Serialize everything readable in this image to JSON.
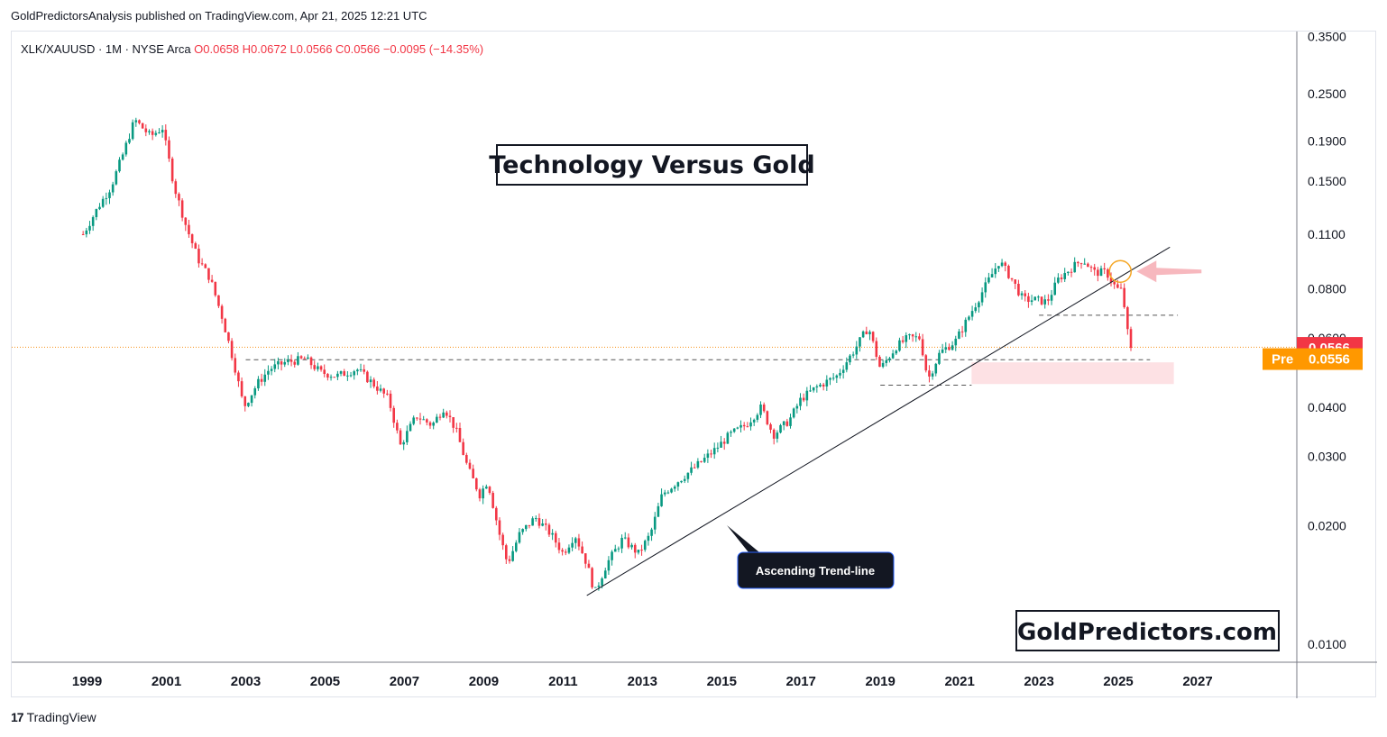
{
  "publisher_line": "GoldPredictorsAnalysis published on TradingView.com, Apr 21, 2025 12:21 UTC",
  "footer": {
    "brand": "TradingView",
    "mark": "17"
  },
  "colors": {
    "up": "#089981",
    "down": "#f23645",
    "trend": "#131722",
    "price_badge": "#f23645",
    "pre_badge": "#ff9800",
    "zone": "#fde1e4",
    "arrow": "#f7b8be",
    "circle": "#f5a623"
  },
  "chart_data": {
    "type": "candlestick",
    "symbol_line": {
      "symbol": "XLK/XAUUSD · 1M · NYSE Arca",
      "open": "O0.0658",
      "high": "H0.0672",
      "low": "L0.0566",
      "close": "C0.0566",
      "change": "−0.0095 (−14.35%)"
    },
    "title": "Technology Versus Gold",
    "watermark": "GoldPredictors.com",
    "annotation": "Ascending Trend-line",
    "y_scale": "log",
    "ylim": [
      0.009,
      0.36
    ],
    "yticks": [
      "0.3500",
      "0.2500",
      "0.1900",
      "0.1500",
      "0.1100",
      "0.0800",
      "0.0600",
      "0.0400",
      "0.0300",
      "0.0200",
      "0.0100"
    ],
    "xticks": [
      "1999",
      "2001",
      "2003",
      "2005",
      "2007",
      "2009",
      "2011",
      "2013",
      "2015",
      "2017",
      "2019",
      "2021",
      "2023",
      "2025",
      "2027"
    ],
    "xlim": [
      1997.1,
      2029.5
    ],
    "anchors": [
      [
        1998.9,
        0.11
      ],
      [
        1999.3,
        0.13
      ],
      [
        1999.6,
        0.145
      ],
      [
        1999.9,
        0.175
      ],
      [
        2000.2,
        0.215
      ],
      [
        2000.6,
        0.195
      ],
      [
        2000.9,
        0.205
      ],
      [
        2001.2,
        0.145
      ],
      [
        2001.5,
        0.115
      ],
      [
        2001.8,
        0.095
      ],
      [
        2002.1,
        0.085
      ],
      [
        2002.4,
        0.068
      ],
      [
        2002.7,
        0.052
      ],
      [
        2002.95,
        0.04
      ],
      [
        2003.3,
        0.046
      ],
      [
        2003.6,
        0.05
      ],
      [
        2004.0,
        0.052
      ],
      [
        2004.5,
        0.053
      ],
      [
        2004.9,
        0.049
      ],
      [
        2005.3,
        0.048
      ],
      [
        2005.8,
        0.05
      ],
      [
        2006.2,
        0.046
      ],
      [
        2006.6,
        0.042
      ],
      [
        2006.9,
        0.032
      ],
      [
        2007.3,
        0.038
      ],
      [
        2007.7,
        0.036
      ],
      [
        2008.0,
        0.04
      ],
      [
        2008.3,
        0.035
      ],
      [
        2008.6,
        0.028
      ],
      [
        2008.9,
        0.024
      ],
      [
        2009.1,
        0.026
      ],
      [
        2009.4,
        0.019
      ],
      [
        2009.6,
        0.016
      ],
      [
        2009.9,
        0.019
      ],
      [
        2010.3,
        0.021
      ],
      [
        2010.7,
        0.019
      ],
      [
        2011.0,
        0.017
      ],
      [
        2011.3,
        0.019
      ],
      [
        2011.6,
        0.016
      ],
      [
        2011.8,
        0.0135
      ],
      [
        2012.1,
        0.016
      ],
      [
        2012.5,
        0.0185
      ],
      [
        2012.9,
        0.017
      ],
      [
        2013.2,
        0.019
      ],
      [
        2013.5,
        0.024
      ],
      [
        2013.9,
        0.026
      ],
      [
        2014.3,
        0.028
      ],
      [
        2014.8,
        0.031
      ],
      [
        2015.2,
        0.034
      ],
      [
        2015.6,
        0.036
      ],
      [
        2016.0,
        0.04
      ],
      [
        2016.3,
        0.034
      ],
      [
        2016.7,
        0.037
      ],
      [
        2017.0,
        0.042
      ],
      [
        2017.4,
        0.045
      ],
      [
        2017.9,
        0.048
      ],
      [
        2018.3,
        0.055
      ],
      [
        2018.7,
        0.064
      ],
      [
        2019.0,
        0.05
      ],
      [
        2019.4,
        0.057
      ],
      [
        2019.7,
        0.06
      ],
      [
        2020.0,
        0.06
      ],
      [
        2020.2,
        0.047
      ],
      [
        2020.5,
        0.055
      ],
      [
        2020.9,
        0.059
      ],
      [
        2021.3,
        0.07
      ],
      [
        2021.7,
        0.083
      ],
      [
        2022.0,
        0.094
      ],
      [
        2022.3,
        0.085
      ],
      [
        2022.6,
        0.075
      ],
      [
        2022.9,
        0.075
      ],
      [
        2023.2,
        0.074
      ],
      [
        2023.5,
        0.085
      ],
      [
        2023.8,
        0.09
      ],
      [
        2024.1,
        0.095
      ],
      [
        2024.4,
        0.088
      ],
      [
        2024.7,
        0.088
      ],
      [
        2024.95,
        0.08
      ],
      [
        2025.1,
        0.079
      ],
      [
        2025.2,
        0.066
      ],
      [
        2025.28,
        0.0566
      ]
    ],
    "trendline": [
      [
        2011.6,
        0.0133
      ],
      [
        2026.3,
        0.102
      ]
    ],
    "levels": [
      {
        "price": 0.0528,
        "from": 2003.0,
        "to": 2025.8,
        "style": "dashed"
      },
      {
        "price": 0.0685,
        "from": 2023.0,
        "to": 2026.5,
        "style": "dashed"
      },
      {
        "price": 0.0455,
        "from": 2019.0,
        "to": 2021.3,
        "style": "dashed"
      },
      {
        "price": 0.0568,
        "from": 1997.1,
        "to": 2029.5,
        "style": "dotted"
      }
    ],
    "zone": {
      "from": 2021.3,
      "to": 2026.4,
      "top": 0.052,
      "bottom": 0.0458
    },
    "breakdown_circle": [
      2025.05,
      0.0885
    ],
    "price_label": {
      "value": "0.0566",
      "price": 0.0566
    },
    "pre_label": {
      "tag": "Pre",
      "value": "0.0556",
      "price": 0.053
    }
  }
}
